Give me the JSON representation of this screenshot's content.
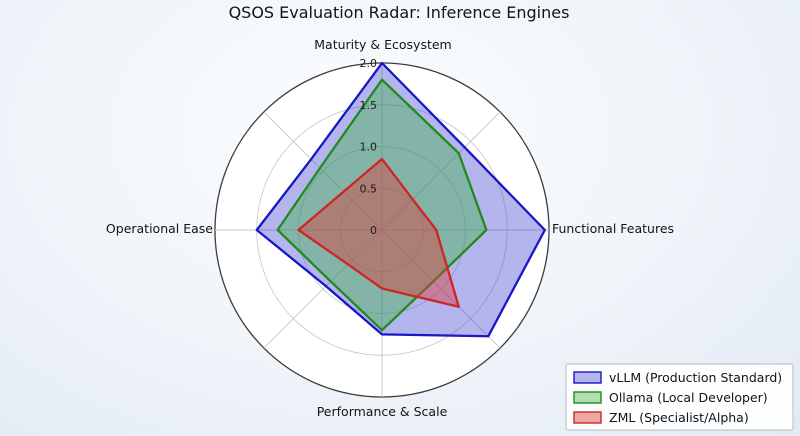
{
  "figure": {
    "title": "QSOS Evaluation Radar: Inference Engines"
  },
  "chart_data": {
    "type": "radar",
    "title": "QSOS Evaluation Radar: Inference Engines",
    "axes": [
      {
        "label": "Maturity & Ecosystem",
        "angle_deg": 90
      },
      {
        "label": "",
        "angle_deg": 45
      },
      {
        "label": "Functional Features",
        "angle_deg": 0
      },
      {
        "label": "",
        "angle_deg": -45
      },
      {
        "label": "Performance & Scale",
        "angle_deg": -90
      },
      {
        "label": "",
        "angle_deg": -135
      },
      {
        "label": "Operational Ease",
        "angle_deg": 180
      },
      {
        "label": "",
        "angle_deg": 135
      }
    ],
    "r_ticks": [
      "0",
      "0.5",
      "1.0",
      "1.5",
      "2.0"
    ],
    "r_max": 2.0,
    "grid": true,
    "legend_position": "lower right",
    "series": [
      {
        "name": "vLLM (Production Standard)",
        "stroke": "#1717c9",
        "fill": "rgba(60,60,210,0.38)",
        "values": [
          2.0,
          1.4,
          1.95,
          1.8,
          1.25,
          0.95,
          1.5,
          1.2
        ]
      },
      {
        "name": "Ollama (Local Developer)",
        "stroke": "#1f8b1f",
        "fill": "rgba(60,179,60,0.40)",
        "values": [
          1.8,
          1.3,
          1.25,
          0.87,
          1.2,
          0.87,
          1.25,
          1.05
        ]
      },
      {
        "name": "ZML (Specialist/Alpha)",
        "stroke": "#cd2626",
        "fill": "rgba(220,60,60,0.45)",
        "values": [
          0.85,
          0.52,
          0.65,
          1.3,
          0.7,
          0.58,
          1.0,
          0.65
        ]
      }
    ]
  }
}
